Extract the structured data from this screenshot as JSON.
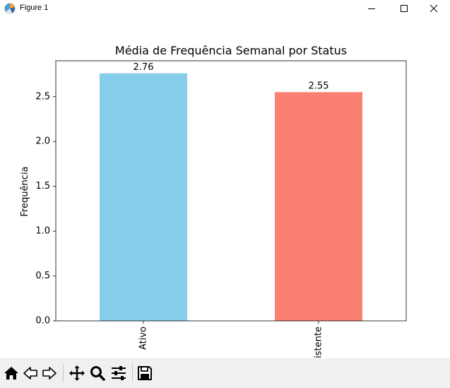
{
  "window": {
    "title": "Figure 1",
    "controls": [
      "minimize-icon",
      "maximize-icon",
      "close-icon"
    ]
  },
  "toolbar": {
    "buttons": [
      "home-icon",
      "back-icon",
      "forward-icon",
      "pan-icon",
      "zoom-icon",
      "configure-subplots-icon",
      "save-icon"
    ]
  },
  "colors": {
    "ativo": "#87ceeb",
    "desistente": "#fa8072",
    "toolbar_bg": "#f0f0f0"
  },
  "chart_data": {
    "type": "bar",
    "title": "Média de Frequência Semanal por Status",
    "xlabel": "",
    "ylabel": "Frequência",
    "categories": [
      "Ativo",
      "Desistente"
    ],
    "values": [
      2.76,
      2.55
    ],
    "data_labels": [
      "2.76",
      "2.55"
    ],
    "bar_colors": [
      "#87ceeb",
      "#fa8072"
    ],
    "ylim": [
      0,
      2.9
    ],
    "yticks": [
      0.0,
      0.5,
      1.0,
      1.5,
      2.0,
      2.5
    ],
    "ytick_labels": [
      "0.0",
      "0.5",
      "1.0",
      "1.5",
      "2.0",
      "2.5"
    ],
    "xtick_rotation": 90,
    "grid": false,
    "legend": "none"
  }
}
